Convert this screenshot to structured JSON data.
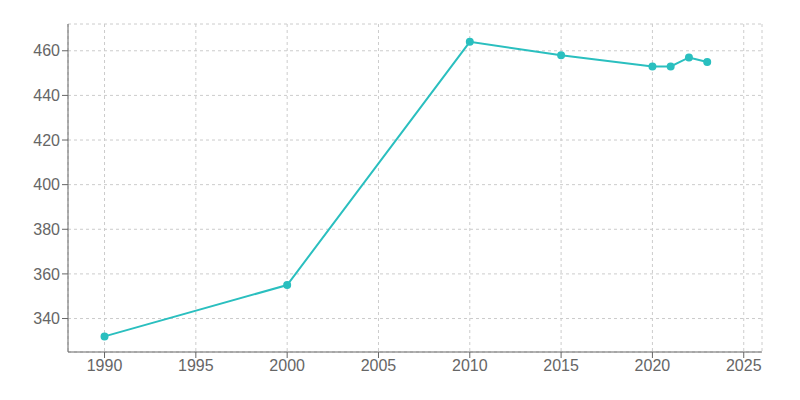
{
  "chart_data": {
    "type": "line",
    "x": [
      1990,
      2000,
      2010,
      2015,
      2020,
      2021,
      2022,
      2023
    ],
    "values": [
      332,
      355,
      464,
      458,
      453,
      453,
      457,
      455
    ],
    "color": "#2abfbf",
    "marker": "circle",
    "xlim": [
      1988,
      2026
    ],
    "ylim": [
      325,
      472
    ],
    "xticks": [
      1990,
      1995,
      2000,
      2005,
      2010,
      2015,
      2020,
      2025
    ],
    "yticks": [
      340,
      360,
      380,
      400,
      420,
      440,
      460
    ],
    "grid": true
  }
}
